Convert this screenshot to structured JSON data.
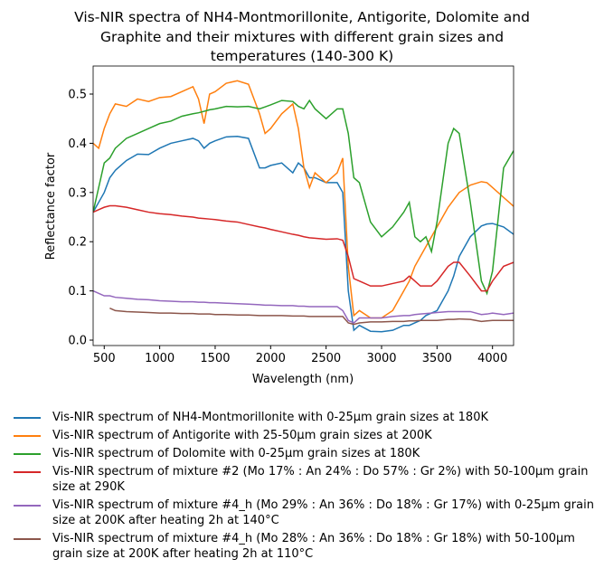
{
  "chart_data": {
    "type": "line",
    "title": [
      "Vis-NIR spectra of NH4-Montmorillonite, Antigorite, Dolomite and",
      "Graphite and their mixtures with different grain sizes and",
      "temperatures (140-300 K)"
    ],
    "xlabel": "Wavelength (nm)",
    "ylabel": "Reflectance factor",
    "xlim": [
      400,
      4190
    ],
    "ylim": [
      -0.011,
      0.557
    ],
    "xticks": [
      500,
      1000,
      1500,
      2000,
      2500,
      3000,
      3500,
      4000
    ],
    "yticks": [
      {
        "value": 0,
        "label": "0.0"
      },
      0.1,
      0.2,
      0.3,
      0.4,
      0.5
    ],
    "legend": "below",
    "x": [
      400,
      450,
      500,
      550,
      600,
      700,
      800,
      900,
      1000,
      1100,
      1200,
      1300,
      1350,
      1400,
      1450,
      1500,
      1600,
      1700,
      1800,
      1900,
      1950,
      2000,
      2100,
      2200,
      2250,
      2300,
      2350,
      2400,
      2500,
      2600,
      2650,
      2700,
      2750,
      2800,
      2900,
      3000,
      3100,
      3200,
      3250,
      3300,
      3350,
      3400,
      3450,
      3500,
      3600,
      3650,
      3700,
      3800,
      3900,
      3950,
      4000,
      4100,
      4190
    ],
    "series": [
      {
        "name": "Vis-NIR spectrum of NH4-Montmorillonite with 0-25μm grain sizes at 180K",
        "color": "#1f77b4",
        "values": [
          0.26,
          0.28,
          0.3,
          0.33,
          0.345,
          0.365,
          0.378,
          0.377,
          0.39,
          0.4,
          0.405,
          0.41,
          0.405,
          0.39,
          0.4,
          0.405,
          0.413,
          0.414,
          0.41,
          0.35,
          0.35,
          0.355,
          0.36,
          0.34,
          0.36,
          0.35,
          0.33,
          0.33,
          0.32,
          0.32,
          0.3,
          0.1,
          0.02,
          0.03,
          0.018,
          0.017,
          0.02,
          0.03,
          0.03,
          0.035,
          0.04,
          0.05,
          0.055,
          0.06,
          0.1,
          0.13,
          0.17,
          0.21,
          0.232,
          0.236,
          0.237,
          0.23,
          0.215
        ]
      },
      {
        "name": "Vis-NIR spectrum of Antigorite with 25-50μm grain sizes at 200K",
        "color": "#ff7f0e",
        "values": [
          0.4,
          0.39,
          0.43,
          0.46,
          0.48,
          0.475,
          0.49,
          0.485,
          0.493,
          0.495,
          0.505,
          0.515,
          0.49,
          0.44,
          0.5,
          0.505,
          0.522,
          0.527,
          0.52,
          0.46,
          0.42,
          0.43,
          0.46,
          0.48,
          0.43,
          0.35,
          0.31,
          0.34,
          0.32,
          0.34,
          0.37,
          0.15,
          0.05,
          0.06,
          0.045,
          0.045,
          0.06,
          0.1,
          0.12,
          0.15,
          0.17,
          0.19,
          0.21,
          0.23,
          0.27,
          0.285,
          0.3,
          0.315,
          0.322,
          0.32,
          0.31,
          0.29,
          0.272
        ]
      },
      {
        "name": "Vis-NIR spectrum of Dolomite with 0-25μm grain sizes at 180K",
        "color": "#2ca02c",
        "values": [
          0.26,
          0.31,
          0.36,
          0.37,
          0.39,
          0.41,
          0.42,
          0.43,
          0.44,
          0.445,
          0.455,
          0.46,
          0.462,
          0.465,
          0.468,
          0.47,
          0.475,
          0.474,
          0.475,
          0.47,
          0.474,
          0.478,
          0.487,
          0.485,
          0.475,
          0.47,
          0.487,
          0.47,
          0.45,
          0.47,
          0.47,
          0.42,
          0.33,
          0.32,
          0.24,
          0.21,
          0.23,
          0.26,
          0.28,
          0.21,
          0.2,
          0.21,
          0.18,
          0.24,
          0.4,
          0.43,
          0.42,
          0.28,
          0.12,
          0.095,
          0.14,
          0.35,
          0.385
        ]
      },
      {
        "name": "Vis-NIR spectrum of mixture #2 (Mo 17% : An 24% : Do 57% : Gr 2%) with 50-100μm grain size at 290K",
        "color": "#d62728",
        "values": [
          0.26,
          0.265,
          0.27,
          0.273,
          0.273,
          0.27,
          0.265,
          0.26,
          0.257,
          0.255,
          0.252,
          0.25,
          0.248,
          0.247,
          0.246,
          0.245,
          0.242,
          0.24,
          0.235,
          0.23,
          0.228,
          0.225,
          0.22,
          0.215,
          0.213,
          0.21,
          0.208,
          0.207,
          0.205,
          0.206,
          0.203,
          0.17,
          0.125,
          0.12,
          0.11,
          0.11,
          0.115,
          0.12,
          0.13,
          0.12,
          0.11,
          0.11,
          0.11,
          0.12,
          0.15,
          0.158,
          0.158,
          0.13,
          0.1,
          0.1,
          0.12,
          0.15,
          0.158
        ]
      },
      {
        "name": "Vis-NIR spectrum of mixture #4_h (Mo 29% : An 36% : Do 18% : Gr 17%) with 0-25μm grain size at 200K after heating 2h at 140°C",
        "color": "#9467bd",
        "values": [
          0.1,
          0.095,
          0.09,
          0.09,
          0.087,
          0.085,
          0.083,
          0.082,
          0.08,
          0.079,
          0.078,
          0.078,
          0.077,
          0.077,
          0.076,
          0.076,
          0.075,
          0.074,
          0.073,
          0.072,
          0.071,
          0.071,
          0.07,
          0.07,
          0.069,
          0.069,
          0.068,
          0.068,
          0.068,
          0.068,
          0.06,
          0.04,
          0.035,
          0.045,
          0.045,
          0.045,
          0.048,
          0.05,
          0.05,
          0.052,
          0.053,
          0.054,
          0.055,
          0.056,
          0.058,
          0.058,
          0.058,
          0.058,
          0.052,
          0.053,
          0.055,
          0.052,
          0.055
        ]
      },
      {
        "name": "Vis-NIR spectrum of mixture #4_h (Mo 28% : An 36% : Do 18% : Gr 18%) with 50-100μm grain size at 200K after heating 2h at 110°C",
        "color": "#8c564b",
        "values": [
          null,
          null,
          null,
          0.065,
          0.06,
          0.058,
          0.057,
          0.056,
          0.055,
          0.055,
          0.054,
          0.054,
          0.053,
          0.053,
          0.053,
          0.052,
          0.052,
          0.051,
          0.051,
          0.05,
          0.05,
          0.05,
          0.05,
          0.049,
          0.049,
          0.049,
          0.048,
          0.048,
          0.048,
          0.048,
          0.048,
          0.035,
          0.032,
          0.035,
          0.037,
          0.037,
          0.038,
          0.038,
          0.039,
          0.039,
          0.04,
          0.04,
          0.04,
          0.04,
          0.042,
          0.042,
          0.043,
          0.042,
          0.038,
          0.039,
          0.04,
          0.04,
          0.04
        ]
      }
    ]
  }
}
